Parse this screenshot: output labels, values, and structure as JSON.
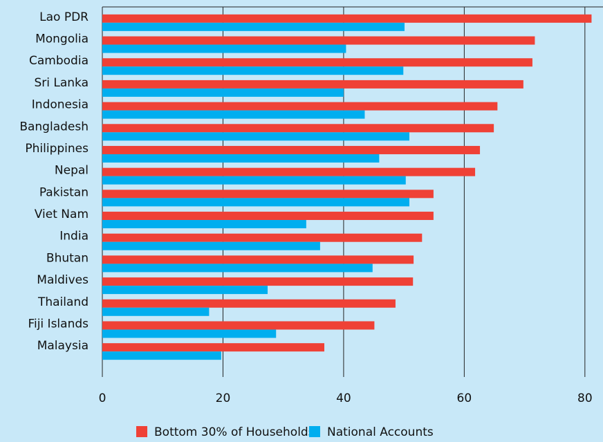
{
  "chart_data": {
    "type": "hbar",
    "categories": [
      "Lao PDR",
      "Mongolia",
      "Cambodia",
      "Sri Lanka",
      "Indonesia",
      "Bangladesh",
      "Philippines",
      "Nepal",
      "Pakistan",
      "Viet Nam",
      "India",
      "Bhutan",
      "Maldives",
      "Thailand",
      "Fiji Islands",
      "Malaysia"
    ],
    "series": [
      {
        "name": "Bottom 30% of Households",
        "color": "#ef4136",
        "values": [
          81.1,
          71.7,
          71.3,
          69.8,
          65.5,
          64.9,
          62.6,
          61.8,
          54.9,
          54.9,
          53.0,
          51.6,
          51.5,
          48.6,
          45.1,
          36.8
        ]
      },
      {
        "name": "National Accounts",
        "color": "#00aeef",
        "values": [
          50.1,
          40.4,
          49.9,
          40.0,
          43.5,
          50.9,
          45.9,
          50.3,
          50.9,
          33.8,
          36.1,
          44.8,
          27.4,
          17.7,
          28.8,
          19.7
        ]
      }
    ],
    "xlim": [
      0,
      83
    ],
    "xticks": [
      0,
      20,
      40,
      60,
      80
    ],
    "grid": true
  }
}
